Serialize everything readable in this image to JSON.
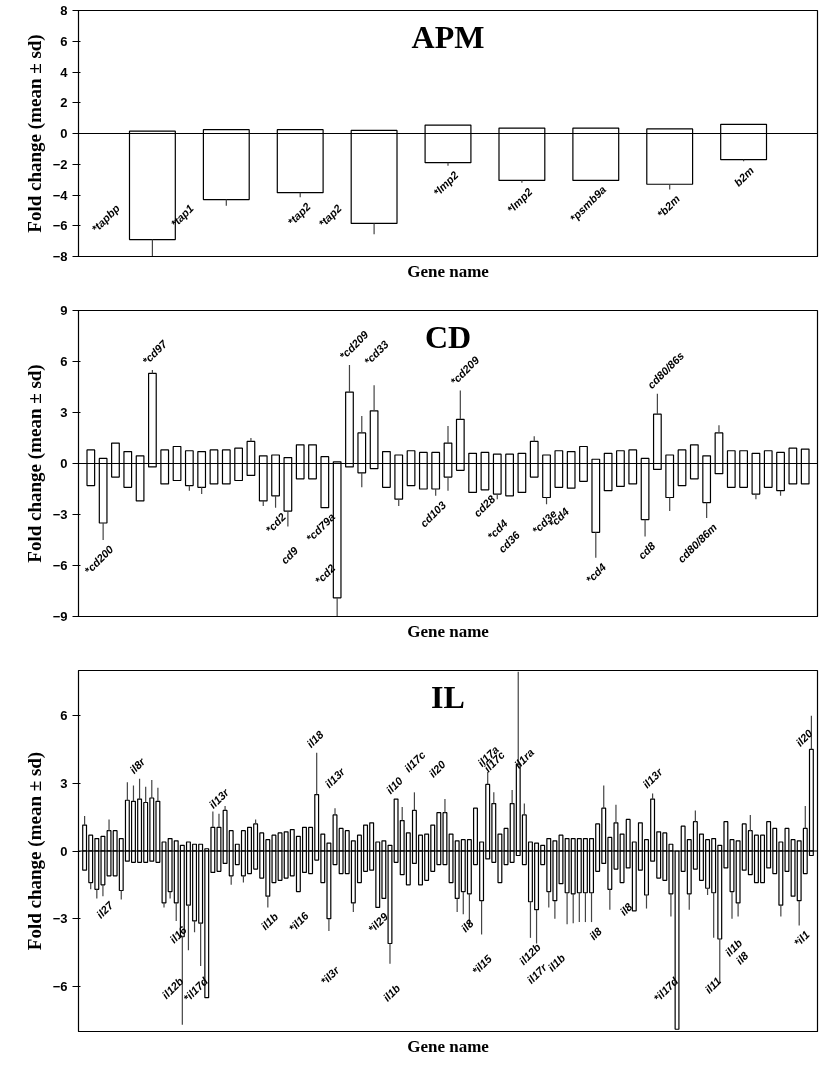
{
  "chart_data": [
    {
      "type": "bar",
      "title": "APM",
      "xlabel": "Gene name",
      "ylabel": "Fold change (mean ± sd)",
      "categories": [
        "*tapbp",
        "*tap1",
        "*tap2",
        "*tap2",
        "*lmp2",
        "*lmp2",
        "*psmb9a",
        "*b2m",
        "b2m"
      ],
      "series": [
        {
          "color": "#ffffff",
          "values": [
            0.15,
            0.25,
            0.25,
            0.2,
            0.55,
            0.35,
            0.35,
            0.3,
            0.6
          ]
        },
        {
          "color": "#ffffff",
          "values": [
            -6.9,
            -4.3,
            -3.85,
            -5.85,
            -1.9,
            -3.05,
            -3.05,
            -3.3,
            -1.7
          ],
          "errors": [
            1.1,
            0.4,
            0.3,
            0.7,
            0.2,
            0.15,
            null,
            0.35,
            0.1
          ]
        }
      ],
      "stacked": true,
      "ylim": [
        -8,
        8
      ],
      "yticks": [
        -8,
        -6,
        -4,
        -2,
        0,
        2,
        4,
        6,
        8
      ],
      "ref_lines": [
        {
          "axis": "y",
          "value": 0
        }
      ],
      "tick_labels": "y",
      "grid": false
    },
    {
      "type": "bar",
      "title": "CD",
      "xlabel": "Gene name",
      "ylabel": "Fold change (mean ± sd)",
      "categories": [
        null,
        "*cd200",
        null,
        null,
        null,
        "*cd97",
        null,
        null,
        null,
        null,
        null,
        null,
        null,
        null,
        null,
        "*cd2",
        "cd9",
        null,
        null,
        "*cd79a",
        "*cd2",
        "*cd209",
        null,
        "*cd33",
        null,
        null,
        null,
        null,
        "cd103",
        null,
        "*cd209",
        null,
        "cd28",
        "*cd4",
        "cd36",
        null,
        null,
        "*cd3e",
        "*cd4",
        null,
        null,
        "*cd4",
        null,
        null,
        null,
        "cd8",
        "cd80/86s",
        null,
        null,
        null,
        "cd80/86m",
        null,
        null,
        null,
        null,
        null,
        null,
        null,
        null
      ],
      "series": [
        {
          "color": "#ffffff",
          "values": [
            0.8,
            0.3,
            1.2,
            0.7,
            0.45,
            5.3,
            0.8,
            1.0,
            0.75,
            0.7,
            0.8,
            0.8,
            0.9,
            1.3,
            0.45,
            0.5,
            0.35,
            1.1,
            1.1,
            0.4,
            0.1,
            4.2,
            1.8,
            3.1,
            0.7,
            0.5,
            0.75,
            0.65,
            0.65,
            1.2,
            2.6,
            0.6,
            0.65,
            0.55,
            0.55,
            0.6,
            1.3,
            0.5,
            0.75,
            0.7,
            1.0,
            0.25,
            0.6,
            0.75,
            0.8,
            0.3,
            2.9,
            0.5,
            0.8,
            1.1,
            0.45,
            1.8,
            0.75,
            0.75,
            0.6,
            0.75,
            0.65,
            0.9,
            0.85
          ],
          "errors": [
            null,
            null,
            null,
            null,
            null,
            0.2,
            null,
            null,
            null,
            null,
            null,
            null,
            null,
            0.2,
            null,
            null,
            null,
            null,
            null,
            null,
            null,
            1.6,
            1.0,
            1.5,
            null,
            null,
            null,
            null,
            null,
            1.0,
            1.7,
            null,
            null,
            null,
            null,
            null,
            0.3,
            null,
            null,
            null,
            null,
            null,
            null,
            null,
            null,
            null,
            1.2,
            null,
            null,
            null,
            null,
            0.45,
            null,
            null,
            null,
            null,
            null,
            null,
            null
          ]
        },
        {
          "color": "#ffffff",
          "values": [
            -1.3,
            -3.5,
            -0.8,
            -1.4,
            -2.2,
            -0.2,
            -1.2,
            -1.0,
            -1.3,
            -1.4,
            -1.2,
            -1.2,
            -1.0,
            -0.7,
            -2.2,
            -1.9,
            -2.8,
            -0.9,
            -0.9,
            -2.6,
            -7.9,
            -0.2,
            -0.55,
            -0.3,
            -1.4,
            -2.1,
            -1.3,
            -1.5,
            -1.5,
            -0.8,
            -0.4,
            -1.7,
            -1.55,
            -1.8,
            -1.9,
            -1.7,
            -0.8,
            -2.0,
            -1.4,
            -1.45,
            -1.05,
            -4.05,
            -1.6,
            -1.35,
            -1.2,
            -3.3,
            -0.35,
            -2.0,
            -1.3,
            -0.9,
            -2.3,
            -0.6,
            -1.4,
            -1.4,
            -1.8,
            -1.4,
            -1.6,
            -1.2,
            -1.2
          ],
          "errors": [
            null,
            1.0,
            null,
            null,
            null,
            null,
            null,
            null,
            0.3,
            0.4,
            null,
            null,
            null,
            null,
            0.3,
            0.7,
            0.9,
            null,
            null,
            null,
            1.1,
            null,
            0.85,
            null,
            null,
            0.4,
            null,
            null,
            0.4,
            0.8,
            null,
            null,
            null,
            0.3,
            null,
            null,
            null,
            0.4,
            null,
            null,
            null,
            1.5,
            null,
            null,
            null,
            1.0,
            null,
            0.8,
            null,
            null,
            0.9,
            null,
            null,
            null,
            0.3,
            null,
            0.3,
            null,
            null
          ]
        }
      ],
      "stacked": true,
      "ylim": [
        -9,
        9
      ],
      "yticks": [
        -9,
        -6,
        -3,
        0,
        3,
        6,
        9
      ],
      "ref_lines": [
        {
          "axis": "y",
          "value": 0
        }
      ],
      "tick_labels": "y",
      "grid": false
    },
    {
      "type": "bar",
      "title": "IL",
      "xlabel": "Gene name",
      "ylabel": "Fold change (mean ± sd)",
      "categories": [
        null,
        null,
        null,
        "il27",
        null,
        null,
        null,
        null,
        null,
        "il8r",
        null,
        null,
        null,
        null,
        null,
        "il16",
        "il12b",
        null,
        null,
        null,
        "*il17d",
        null,
        "il13r",
        null,
        null,
        null,
        null,
        null,
        null,
        null,
        "il1b",
        null,
        null,
        null,
        null,
        "*il16",
        null,
        null,
        "il18",
        null,
        "*il3r",
        "il13r",
        null,
        null,
        null,
        null,
        null,
        null,
        "*il29",
        null,
        "il1b",
        "il10",
        null,
        null,
        "il17c",
        null,
        null,
        null,
        "il20",
        null,
        null,
        null,
        "il8",
        null,
        null,
        "*il15",
        "il17a",
        "il17c",
        null,
        null,
        null,
        null,
        "il1ra",
        "il12b",
        "il17r",
        null,
        null,
        "il1b",
        null,
        null,
        null,
        null,
        null,
        "il8",
        null,
        null,
        null,
        null,
        "il8",
        null,
        null,
        null,
        null,
        "il13r",
        null,
        null,
        null,
        "*il17d",
        null,
        null,
        null,
        null,
        null,
        null,
        "il11",
        null,
        "il1b",
        "il8",
        null,
        null,
        null,
        null,
        null,
        null,
        null,
        null,
        null,
        "*il1",
        null,
        "il20"
      ],
      "series": [
        {
          "color": "#ffffff",
          "values": [
            1.15,
            0.7,
            0.55,
            0.65,
            0.9,
            0.9,
            0.55,
            2.25,
            2.2,
            2.3,
            2.15,
            2.35,
            2.2,
            0.4,
            0.55,
            0.45,
            0.25,
            0.4,
            0.3,
            0.3,
            0.1,
            1.05,
            1.05,
            1.8,
            0.9,
            0.3,
            0.9,
            1.05,
            1.2,
            0.8,
            0.5,
            0.7,
            0.8,
            0.85,
            0.95,
            0.65,
            1.05,
            1.05,
            2.5,
            0.75,
            0.35,
            1.6,
            1.0,
            0.9,
            0.45,
            0.7,
            1.15,
            1.25,
            0.4,
            0.45,
            0.25,
            2.3,
            1.35,
            0.8,
            1.8,
            0.7,
            0.75,
            1.15,
            1.7,
            1.7,
            0.75,
            0.45,
            0.5,
            0.5,
            1.9,
            0.4,
            2.95,
            2.1,
            0.75,
            1.0,
            2.1,
            3.85,
            1.6,
            0.4,
            0.35,
            0.25,
            0.55,
            0.45,
            0.7,
            0.55,
            0.55,
            0.55,
            0.55,
            0.55,
            1.2,
            1.9,
            0.6,
            1.25,
            0.75,
            1.4,
            0.4,
            1.25,
            0.5,
            2.3,
            0.85,
            0.8,
            0.3,
            null,
            1.1,
            0.5,
            1.3,
            0.75,
            0.5,
            0.55,
            0.25,
            1.3,
            0.5,
            0.45,
            1.2,
            0.9,
            0.7,
            0.7,
            1.3,
            1.0,
            0.4,
            1.0,
            0.5,
            0.45,
            1.0,
            4.5
          ],
          "errors": [
            0.4,
            null,
            null,
            null,
            0.5,
            null,
            null,
            0.8,
            0.7,
            0.9,
            0.7,
            0.8,
            0.6,
            null,
            null,
            null,
            null,
            null,
            null,
            null,
            null,
            0.7,
            0.6,
            0.2,
            null,
            null,
            null,
            null,
            0.2,
            null,
            null,
            null,
            null,
            null,
            null,
            null,
            null,
            null,
            1.85,
            null,
            null,
            0.3,
            null,
            null,
            null,
            null,
            null,
            null,
            null,
            null,
            null,
            null,
            0.6,
            null,
            0.8,
            null,
            null,
            null,
            null,
            0.6,
            null,
            null,
            null,
            null,
            null,
            null,
            0.55,
            0.5,
            null,
            null,
            0.6,
            4.1,
            0.5,
            null,
            null,
            null,
            null,
            null,
            null,
            null,
            null,
            null,
            null,
            null,
            null,
            1.0,
            null,
            0.8,
            null,
            null,
            null,
            null,
            null,
            0.25,
            null,
            null,
            null,
            null,
            null,
            null,
            0.5,
            null,
            null,
            null,
            null,
            null,
            null,
            null,
            null,
            0.7,
            null,
            null,
            null,
            null,
            null,
            null,
            null,
            null,
            1.0,
            1.5
          ]
        },
        {
          "color": "#ffffff",
          "values": [
            -0.85,
            -1.4,
            -1.7,
            -1.5,
            -1.1,
            -1.1,
            -1.75,
            -0.45,
            -0.5,
            -0.5,
            -0.5,
            -0.45,
            -0.5,
            -2.3,
            -1.8,
            -2.3,
            -3.8,
            -2.4,
            -3.1,
            -3.2,
            -6.5,
            -0.95,
            -0.9,
            -0.55,
            -1.1,
            -0.6,
            -1.1,
            -1.0,
            -0.8,
            -1.2,
            -2.0,
            -1.4,
            -1.3,
            -1.2,
            -1.1,
            -1.8,
            -0.95,
            -1.0,
            -0.4,
            -1.4,
            -3.0,
            -0.6,
            -1.0,
            -1.0,
            -2.3,
            -1.4,
            -0.9,
            -0.85,
            -2.5,
            -2.1,
            -4.1,
            -0.5,
            -1.05,
            -1.5,
            -0.55,
            -1.5,
            -1.3,
            -0.9,
            -0.6,
            -0.6,
            -1.4,
            -2.1,
            -1.8,
            -1.9,
            -0.6,
            -2.2,
            -0.35,
            -0.5,
            -1.4,
            -0.6,
            -0.5,
            -0.2,
            -0.6,
            -2.25,
            -2.6,
            -0.6,
            -1.8,
            -2.2,
            -1.45,
            -1.85,
            -1.9,
            -1.85,
            -1.85,
            -1.85,
            -0.9,
            -0.55,
            -1.7,
            -0.8,
            -1.4,
            -0.75,
            -2.65,
            -0.85,
            -1.95,
            -0.45,
            -1.2,
            -1.3,
            -1.9,
            -7.9,
            -0.9,
            -1.9,
            -0.8,
            -1.3,
            -1.65,
            -1.85,
            -3.9,
            -0.75,
            -1.8,
            -2.3,
            -0.85,
            -1.05,
            -1.4,
            -1.4,
            -0.75,
            -1.0,
            -2.4,
            -0.9,
            -2.0,
            -2.2,
            -1.0,
            -0.2
          ],
          "errors": [
            null,
            0.3,
            0.4,
            0.5,
            null,
            null,
            0.4,
            null,
            null,
            null,
            null,
            null,
            null,
            0.2,
            0.3,
            0.8,
            3.9,
            2.0,
            0.5,
            1.9,
            null,
            null,
            null,
            null,
            0.4,
            null,
            0.3,
            null,
            null,
            null,
            0.5,
            null,
            null,
            null,
            null,
            null,
            null,
            null,
            null,
            null,
            0.55,
            null,
            null,
            null,
            0.4,
            null,
            null,
            null,
            null,
            null,
            0.9,
            null,
            null,
            null,
            null,
            null,
            null,
            null,
            null,
            null,
            null,
            0.6,
            1.0,
            1.4,
            null,
            1.5,
            null,
            null,
            null,
            null,
            null,
            null,
            null,
            1.6,
            1.5,
            null,
            0.7,
            0.8,
            null,
            1.4,
            1.3,
            1.3,
            1.3,
            1.3,
            null,
            null,
            0.9,
            null,
            null,
            null,
            null,
            null,
            0.6,
            null,
            null,
            null,
            1.0,
            null,
            null,
            0.7,
            null,
            null,
            0.3,
            2.0,
            1.95,
            null,
            1.2,
            0.6,
            null,
            null,
            null,
            null,
            null,
            null,
            0.5,
            null,
            null,
            1.1,
            null,
            null
          ]
        }
      ],
      "stacked": true,
      "ylim": [
        -8,
        8
      ],
      "yticks": [
        -6,
        -3,
        0,
        3,
        6
      ],
      "ref_lines": [
        {
          "axis": "y",
          "value": 0
        }
      ],
      "tick_labels": "y",
      "grid": false
    }
  ]
}
